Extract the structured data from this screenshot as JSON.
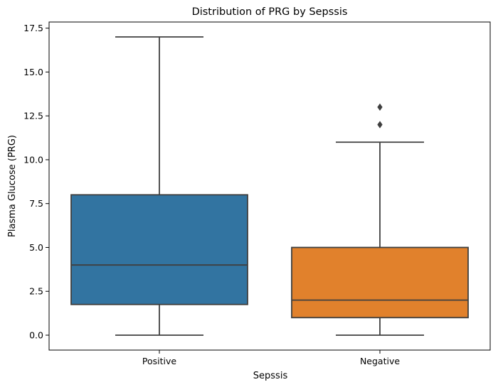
{
  "chart_data": {
    "type": "box",
    "title": "Distribution of PRG by Sepssis",
    "xlabel": "Sepssis",
    "ylabel": "Plasma Glucose (PRG)",
    "ylim": [
      -0.85,
      17.85
    ],
    "yticks": [
      "0.0",
      "2.5",
      "5.0",
      "7.5",
      "10.0",
      "12.5",
      "15.0",
      "17.5"
    ],
    "ytick_values": [
      0,
      2.5,
      5,
      7.5,
      10,
      12.5,
      15,
      17.5
    ],
    "grid": false,
    "categories": [
      "Positive",
      "Negative"
    ],
    "boxes": [
      {
        "category": "Positive",
        "whisker_low": 0,
        "q1": 1.75,
        "median": 4,
        "q3": 8,
        "whisker_high": 17,
        "outliers": [],
        "color": "#3274a1"
      },
      {
        "category": "Negative",
        "whisker_low": 0,
        "q1": 1,
        "median": 2,
        "q3": 5,
        "whisker_high": 11,
        "outliers": [
          12,
          13
        ],
        "color": "#e1812c"
      }
    ]
  }
}
